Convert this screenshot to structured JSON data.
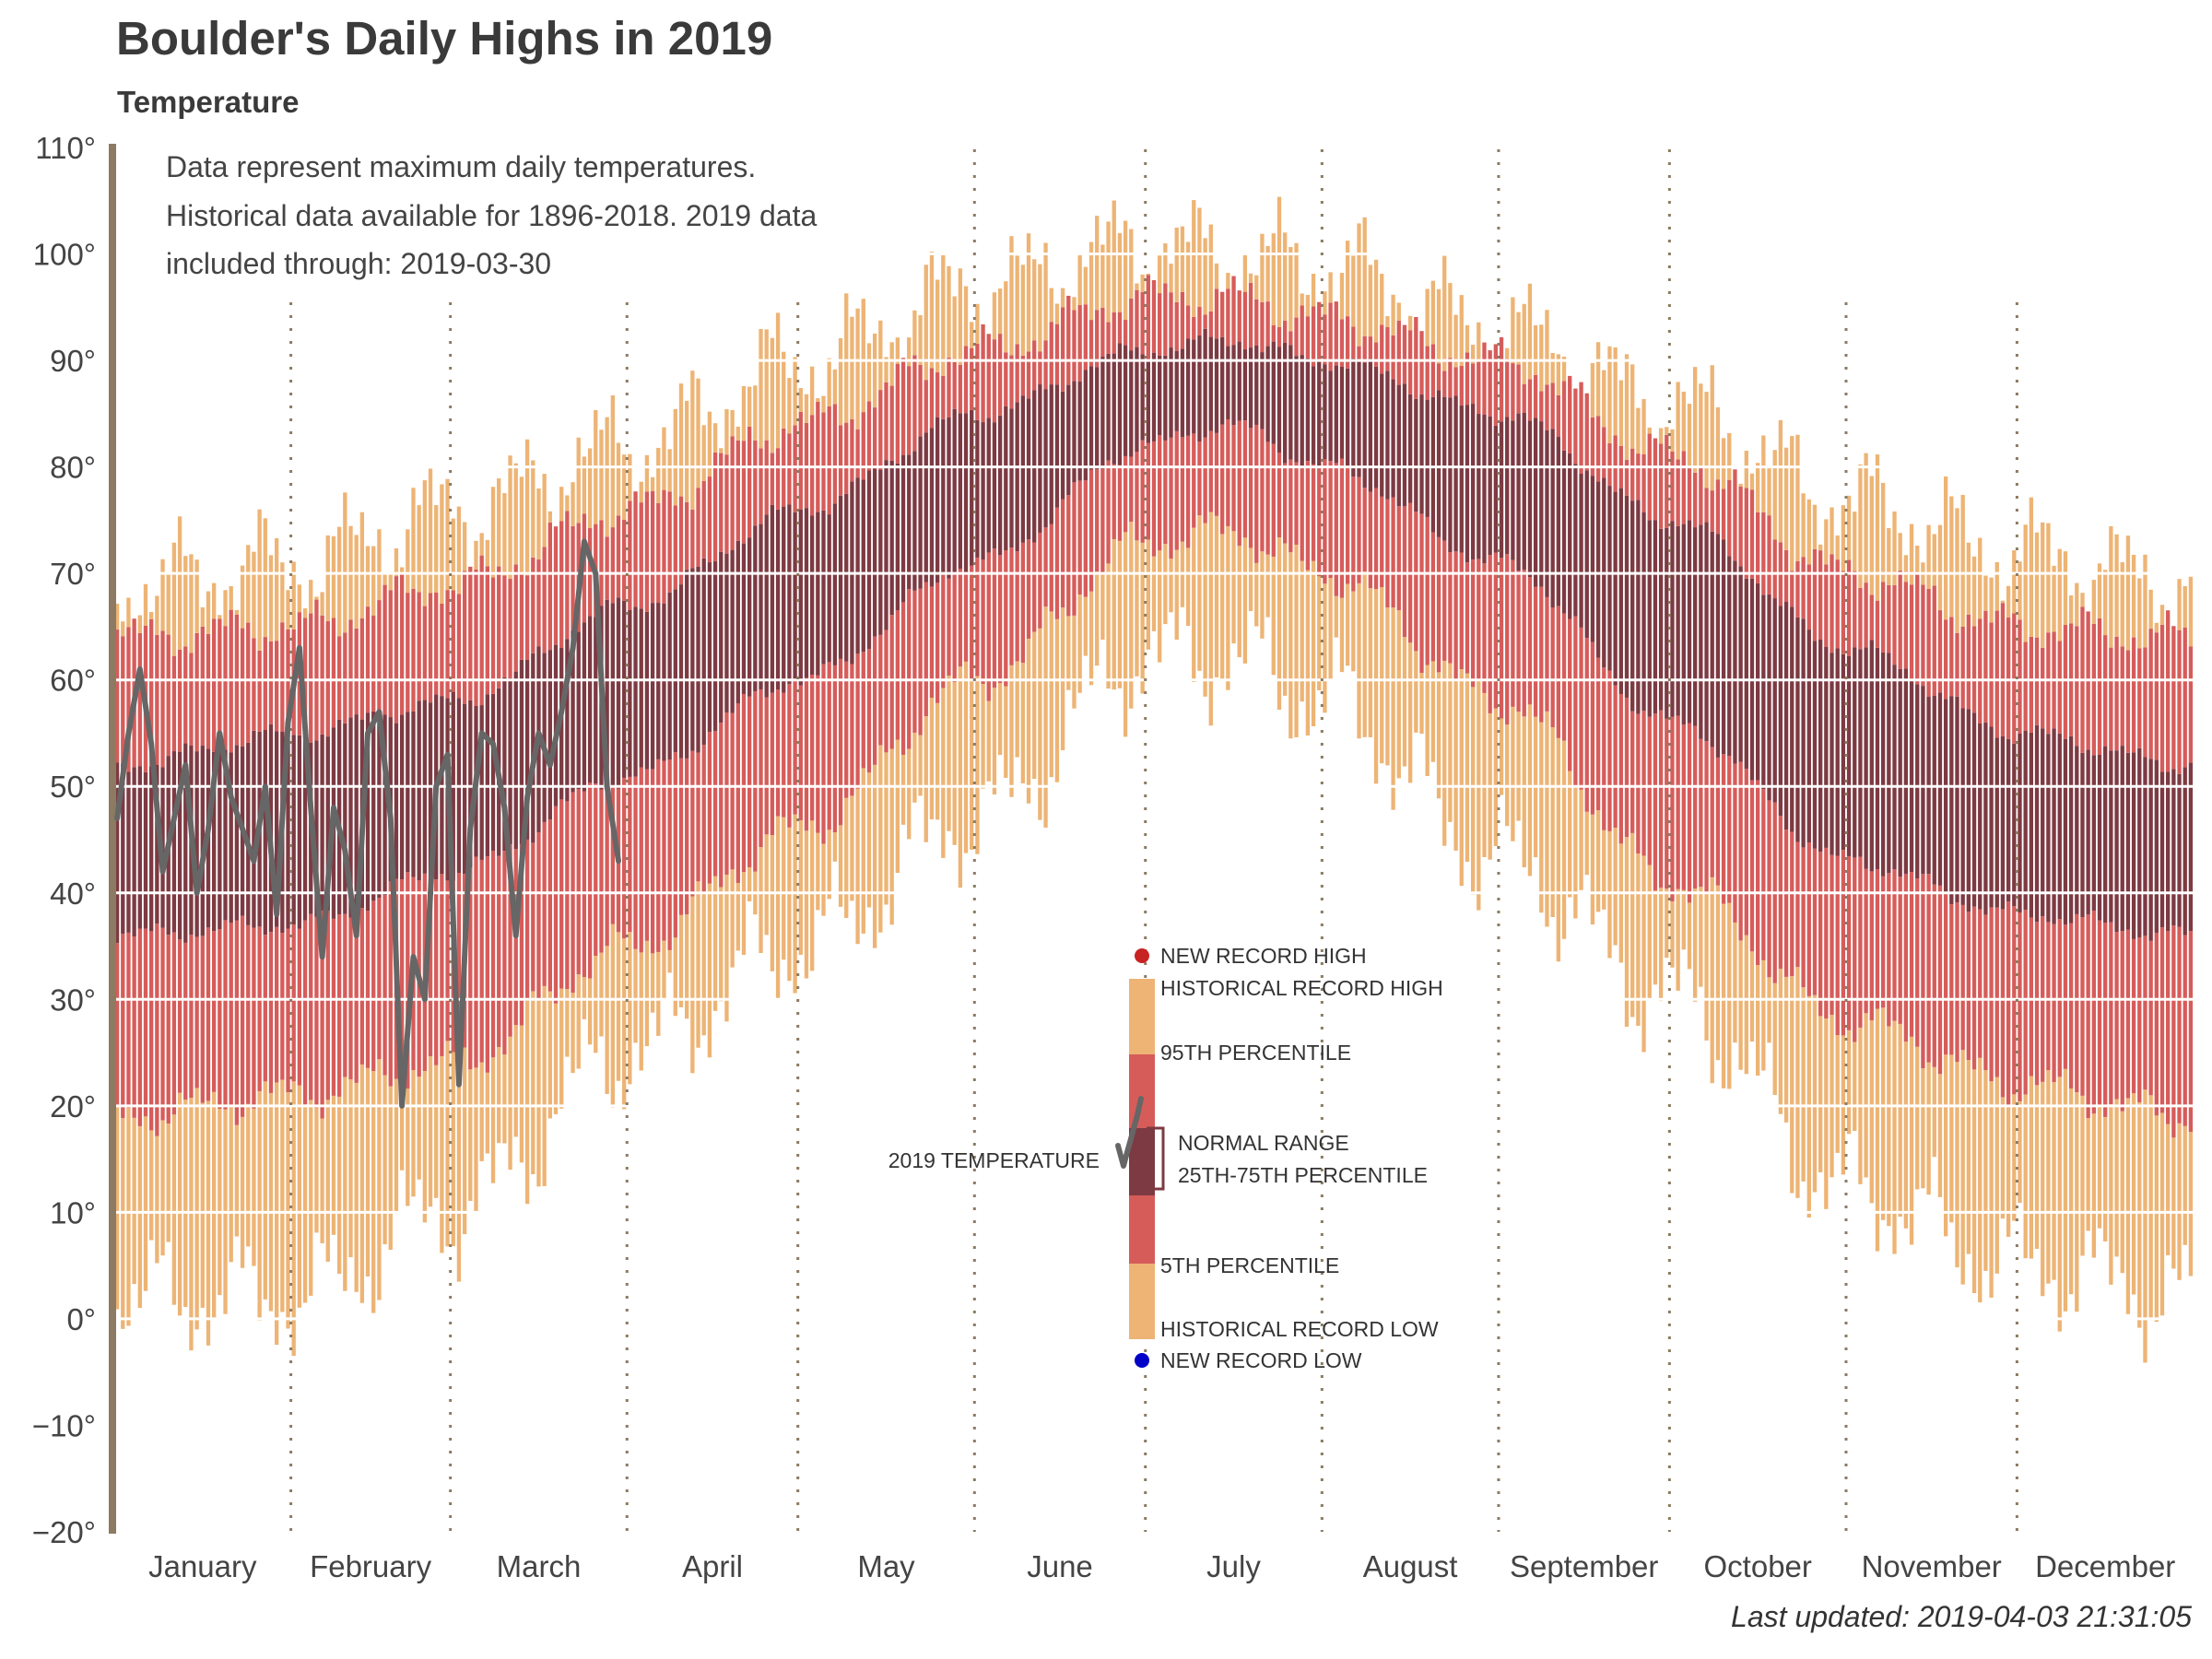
{
  "chart_data": {
    "type": "bar",
    "title": "Boulder's Daily Highs in 2019",
    "subtitle": "Temperature",
    "note_lines": [
      "Data represent maximum daily temperatures.",
      "Historical data available for 1896-2018. 2019 data",
      "included through: 2019-03-30"
    ],
    "footer": "Last updated: 2019-04-03 21:31:05",
    "ylim": [
      -20,
      110
    ],
    "yticks": [
      -20,
      -10,
      0,
      10,
      20,
      30,
      40,
      50,
      60,
      70,
      80,
      90,
      100,
      110
    ],
    "ytick_labels": [
      "−20°",
      "−10°",
      "0°",
      "10°",
      "20°",
      "30°",
      "40°",
      "50°",
      "60°",
      "70°",
      "80°",
      "90°",
      "100°",
      "110°"
    ],
    "months": [
      "January",
      "February",
      "March",
      "April",
      "May",
      "June",
      "July",
      "August",
      "September",
      "October",
      "November",
      "December"
    ],
    "month_days": [
      31,
      28,
      31,
      30,
      31,
      30,
      31,
      31,
      30,
      31,
      30,
      31
    ],
    "colors": {
      "record_band": "#EDB475",
      "percentile_band": "#D65C5A",
      "normal_band": "#7D3A42",
      "temp_2019_line": "#666666",
      "axis": "#8C7B62",
      "record_high_dot": "#C82323",
      "record_low_dot": "#0000C8"
    },
    "series": [
      {
        "name": "HISTORICAL RECORD HIGH",
        "smooth": {
          "day": [
            1,
            32,
            60,
            91,
            121,
            152,
            182,
            196,
            213,
            244,
            274,
            305,
            335,
            365
          ],
          "value": [
            69,
            71,
            76,
            82,
            90,
            97,
            101,
            100,
            99,
            93,
            86,
            77,
            72,
            69
          ]
        }
      },
      {
        "name": "95TH PERCENTILE",
        "smooth": {
          "day": [
            1,
            32,
            60,
            91,
            121,
            152,
            182,
            196,
            213,
            244,
            274,
            305,
            335,
            365
          ],
          "value": [
            64,
            65,
            69,
            76,
            84,
            91,
            96,
            96,
            94,
            90,
            81,
            70,
            65,
            64
          ]
        }
      },
      {
        "name": "75TH PERCENTILE",
        "smooth": {
          "day": [
            1,
            32,
            60,
            91,
            121,
            152,
            182,
            196,
            213,
            244,
            274,
            305,
            335,
            365
          ],
          "value": [
            52,
            55,
            58,
            67,
            76,
            85,
            91,
            92,
            90,
            85,
            75,
            63,
            55,
            52
          ]
        }
      },
      {
        "name": "25TH PERCENTILE",
        "smooth": {
          "day": [
            1,
            32,
            60,
            91,
            121,
            152,
            182,
            196,
            213,
            244,
            274,
            305,
            335,
            365
          ],
          "value": [
            36,
            37,
            42,
            51,
            60,
            71,
            82,
            84,
            80,
            71,
            56,
            43,
            38,
            36
          ]
        }
      },
      {
        "name": "5TH PERCENTILE",
        "smooth": {
          "day": [
            1,
            32,
            60,
            91,
            121,
            152,
            182,
            196,
            213,
            244,
            274,
            305,
            335,
            365
          ],
          "value": [
            19,
            21,
            24,
            35,
            46,
            60,
            73,
            74,
            70,
            58,
            41,
            28,
            22,
            19
          ]
        }
      },
      {
        "name": "HISTORICAL RECORD LOW",
        "smooth": {
          "day": [
            1,
            32,
            60,
            91,
            121,
            152,
            182,
            196,
            213,
            244,
            274,
            305,
            335,
            365
          ],
          "value": [
            2,
            2,
            10,
            25,
            35,
            47,
            62,
            62,
            58,
            43,
            30,
            12,
            5,
            2
          ]
        }
      },
      {
        "name": "2019 TEMPERATURE",
        "day": [
          1,
          3,
          5,
          7,
          9,
          11,
          13,
          15,
          17,
          19,
          21,
          23,
          25,
          27,
          29,
          31,
          33,
          35,
          37,
          39,
          41,
          43,
          45,
          47,
          49,
          51,
          53,
          55,
          57,
          59,
          61,
          63,
          65,
          67,
          69,
          71,
          73,
          75,
          77,
          79,
          81,
          83,
          85,
          87,
          89
        ],
        "value": [
          47,
          55,
          61,
          54,
          42,
          47,
          52,
          40,
          46,
          55,
          49,
          46,
          43,
          50,
          38,
          56,
          63,
          48,
          34,
          48,
          44,
          36,
          55,
          57,
          47,
          20,
          34,
          30,
          50,
          53,
          22,
          46,
          55,
          54,
          48,
          36,
          49,
          55,
          52,
          57,
          63,
          73,
          70,
          50,
          43
        ]
      }
    ],
    "legend": {
      "new_record_high": "NEW RECORD HIGH",
      "record_high": "HISTORICAL RECORD HIGH",
      "p95": "95TH PERCENTILE",
      "normal_1": "NORMAL RANGE",
      "normal_2": "25TH-75TH PERCENTILE",
      "p5": "5TH PERCENTILE",
      "record_low": "HISTORICAL RECORD LOW",
      "new_record_low": "NEW RECORD LOW",
      "temp_2019": "2019 TEMPERATURE"
    }
  }
}
